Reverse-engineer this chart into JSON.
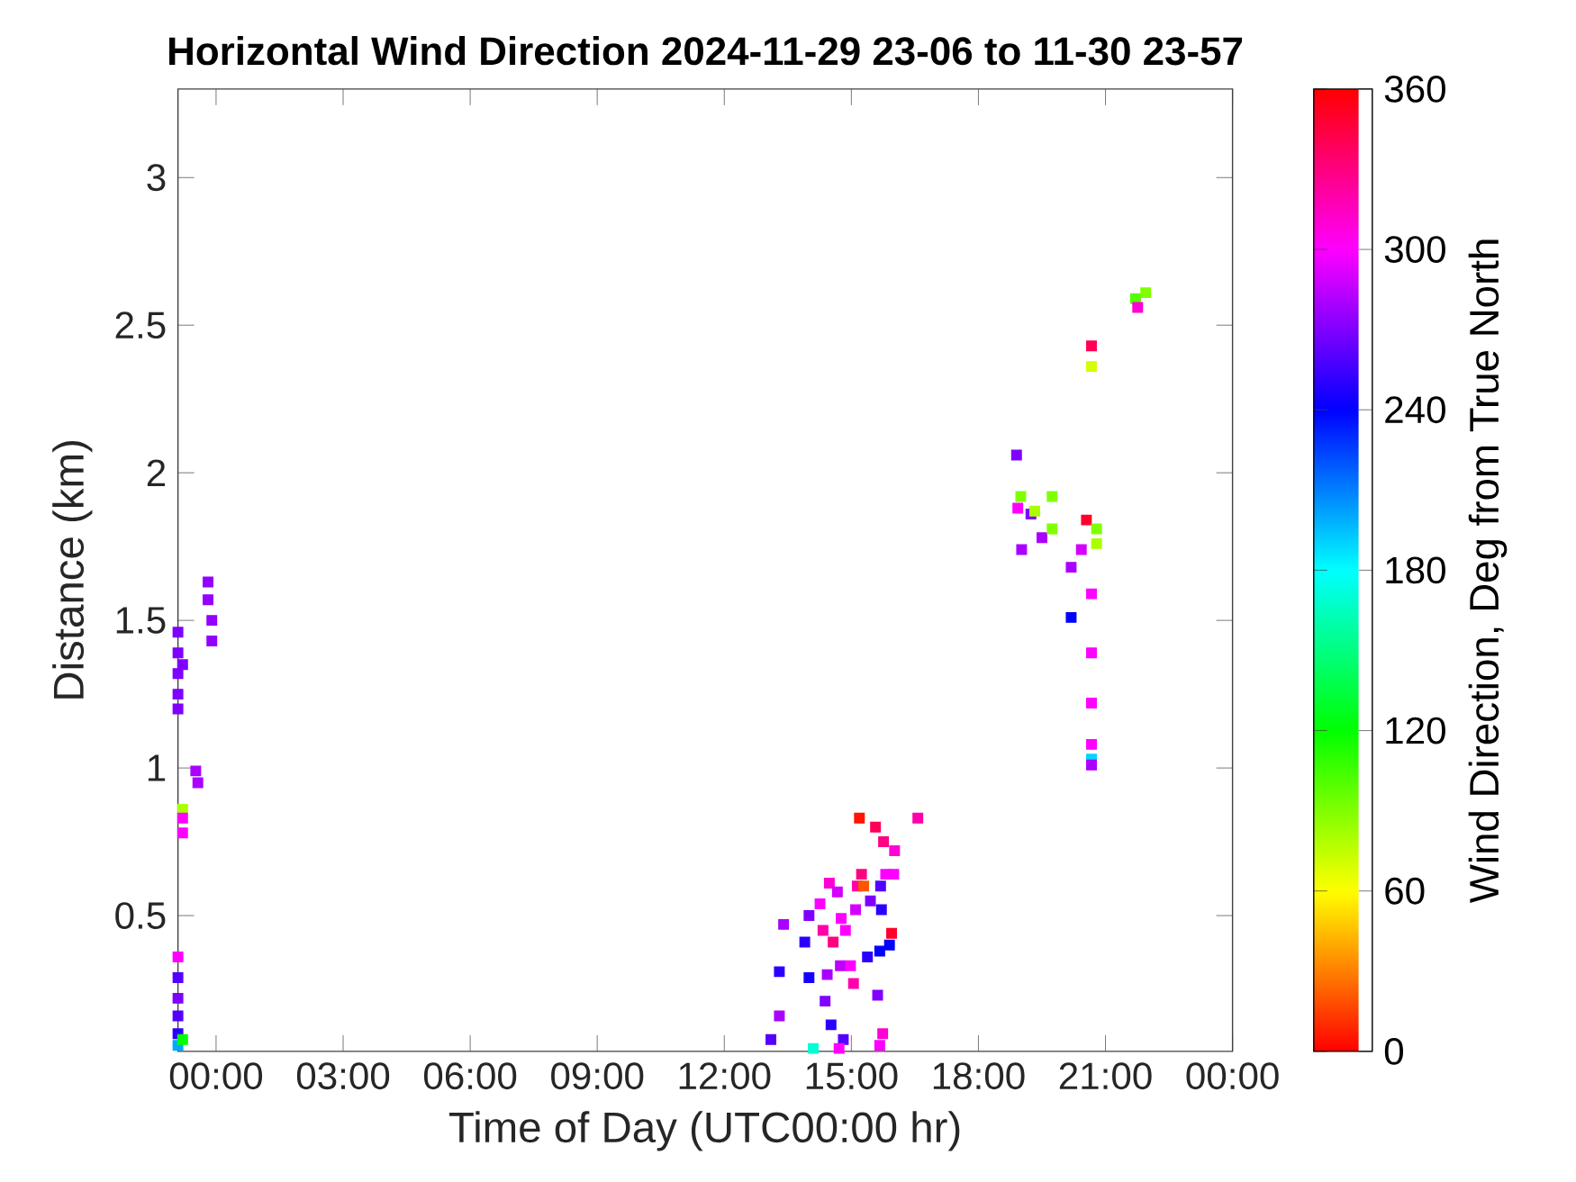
{
  "chart_data": {
    "type": "scatter",
    "title": "Horizontal Wind Direction 2024-11-29 23-06 to 11-30 23-57",
    "xlabel": "Time of Day (UTC00:00 hr)",
    "ylabel": "Distance (km)",
    "clabel": "Wind Direction, Deg from True North",
    "marker": "square",
    "x": [
      -0.9,
      -0.9,
      -0.9,
      -0.9,
      -0.9,
      -0.79,
      -0.9,
      -0.9,
      -0.9,
      -0.9,
      -0.9,
      -0.9,
      -0.79,
      -0.79,
      -0.79,
      -0.79,
      -0.48,
      -0.43,
      -0.19,
      -0.19,
      -0.1,
      -0.1,
      13.1,
      13.3,
      13.3,
      13.4,
      13.9,
      14.0,
      14.0,
      14.1,
      14.26,
      14.33,
      14.38,
      14.43,
      14.48,
      14.52,
      14.57,
      14.67,
      14.74,
      14.76,
      14.81,
      14.86,
      14.98,
      15.05,
      15.1,
      15.14,
      15.19,
      15.24,
      15.29,
      15.38,
      15.45,
      15.57,
      15.62,
      15.67,
      15.69,
      15.71,
      15.74,
      15.76,
      15.81,
      15.9,
      15.95,
      16.0,
      16.02,
      16.57,
      14.71,
      15.67,
      18.9,
      18.93,
      19.0,
      19.02,
      19.24,
      19.33,
      19.5,
      19.74,
      19.74,
      20.19,
      20.19,
      20.43,
      20.55,
      20.67,
      20.67,
      20.67,
      20.67,
      20.67,
      20.67,
      20.67,
      20.67,
      20.79,
      20.79,
      21.71,
      21.76,
      21.95
    ],
    "values": [
      1.46,
      1.39,
      1.32,
      1.25,
      1.2,
      1.35,
      0.36,
      0.29,
      0.22,
      0.16,
      0.1,
      0.06,
      0.08,
      0.86,
      0.83,
      0.78,
      0.99,
      0.95,
      1.63,
      1.57,
      1.5,
      1.43,
      0.08,
      0.16,
      0.31,
      0.47,
      0.41,
      0.29,
      0.5,
      0.05,
      0.54,
      0.45,
      0.21,
      0.3,
      0.61,
      0.13,
      0.41,
      0.58,
      0.33,
      0.49,
      0.08,
      0.45,
      0.33,
      0.27,
      0.52,
      0.6,
      0.83,
      0.64,
      0.6,
      0.36,
      0.55,
      0.8,
      0.23,
      0.38,
      0.6,
      0.52,
      0.1,
      0.75,
      0.64,
      0.4,
      0.44,
      0.64,
      0.72,
      0.83,
      0.05,
      0.06,
      2.06,
      1.88,
      1.92,
      1.74,
      1.86,
      1.87,
      1.78,
      1.92,
      1.81,
      1.68,
      1.51,
      1.74,
      1.84,
      1.59,
      1.39,
      1.22,
      1.08,
      1.03,
      1.01,
      2.43,
      2.36,
      1.81,
      1.76,
      2.59,
      2.56,
      2.61
    ],
    "cvalues": [
      270,
      270,
      270,
      270,
      270,
      270,
      300,
      260,
      270,
      260,
      250,
      200,
      120,
      80,
      300,
      300,
      280,
      280,
      275,
      275,
      275,
      275,
      260,
      280,
      250,
      280,
      250,
      245,
      270,
      170,
      300,
      320,
      270,
      280,
      310,
      250,
      330,
      290,
      285,
      300,
      260,
      300,
      300,
      320,
      290,
      320,
      5,
      330,
      20,
      250,
      270,
      340,
      270,
      240,
      260,
      250,
      310,
      330,
      300,
      240,
      350,
      300,
      310,
      320,
      300,
      300,
      270,
      300,
      90,
      280,
      270,
      80,
      280,
      90,
      90,
      280,
      240,
      290,
      350,
      300,
      300,
      300,
      300,
      190,
      280,
      340,
      70,
      90,
      80,
      100,
      310,
      90
    ],
    "xlim": [
      -0.9,
      24
    ],
    "ylim": [
      0.04,
      3.3
    ],
    "xticks": [
      {
        "value": 0,
        "label": "00:00"
      },
      {
        "value": 3,
        "label": "03:00"
      },
      {
        "value": 6,
        "label": "06:00"
      },
      {
        "value": 9,
        "label": "09:00"
      },
      {
        "value": 12,
        "label": "12:00"
      },
      {
        "value": 15,
        "label": "15:00"
      },
      {
        "value": 18,
        "label": "18:00"
      },
      {
        "value": 21,
        "label": "21:00"
      },
      {
        "value": 24,
        "label": "00:00"
      }
    ],
    "yticks": [
      0.5,
      1,
      1.5,
      2,
      2.5,
      3
    ],
    "clim": [
      0,
      360
    ],
    "cticks": [
      0,
      60,
      120,
      180,
      240,
      300,
      360
    ],
    "grid": false
  }
}
